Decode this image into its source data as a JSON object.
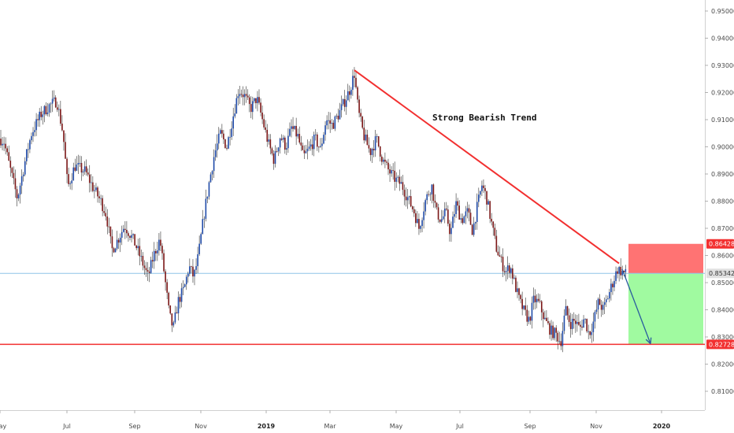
{
  "chart_data": {
    "type": "candlestick",
    "y_axis": {
      "range": [
        0.8,
        0.955
      ],
      "ticks": [
        "0.95000",
        "0.94000",
        "0.93000",
        "0.92000",
        "0.91000",
        "0.90000",
        "0.89000",
        "0.88000",
        "0.87000",
        "0.86000",
        "0.85000",
        "0.84000",
        "0.83000",
        "0.82000",
        "0.81000"
      ],
      "position": "right"
    },
    "x_axis": {
      "ticks": [
        {
          "label": "May",
          "bold": false
        },
        {
          "label": "Jul",
          "bold": false
        },
        {
          "label": "Sep",
          "bold": false
        },
        {
          "label": "Nov",
          "bold": false
        },
        {
          "label": "2019",
          "bold": true
        },
        {
          "label": "Mar",
          "bold": false
        },
        {
          "label": "May",
          "bold": false
        },
        {
          "label": "Jul",
          "bold": false
        },
        {
          "label": "Sep",
          "bold": false
        },
        {
          "label": "Nov",
          "bold": false
        },
        {
          "label": "2020",
          "bold": true
        }
      ]
    },
    "price_path": [
      [
        0,
        0.903
      ],
      [
        5,
        0.902
      ],
      [
        12,
        0.893
      ],
      [
        22,
        0.881
      ],
      [
        32,
        0.895
      ],
      [
        40,
        0.905
      ],
      [
        52,
        0.912
      ],
      [
        62,
        0.915
      ],
      [
        72,
        0.917
      ],
      [
        80,
        0.905
      ],
      [
        86,
        0.885
      ],
      [
        95,
        0.893
      ],
      [
        108,
        0.891
      ],
      [
        118,
        0.885
      ],
      [
        128,
        0.88
      ],
      [
        135,
        0.875
      ],
      [
        142,
        0.862
      ],
      [
        150,
        0.866
      ],
      [
        158,
        0.871
      ],
      [
        165,
        0.868
      ],
      [
        172,
        0.864
      ],
      [
        180,
        0.858
      ],
      [
        188,
        0.852
      ],
      [
        195,
        0.86
      ],
      [
        203,
        0.866
      ],
      [
        210,
        0.85
      ],
      [
        215,
        0.838
      ],
      [
        220,
        0.833
      ],
      [
        226,
        0.843
      ],
      [
        234,
        0.848
      ],
      [
        240,
        0.856
      ],
      [
        246,
        0.852
      ],
      [
        252,
        0.86
      ],
      [
        258,
        0.873
      ],
      [
        265,
        0.886
      ],
      [
        272,
        0.897
      ],
      [
        280,
        0.905
      ],
      [
        288,
        0.9
      ],
      [
        295,
        0.91
      ],
      [
        303,
        0.921
      ],
      [
        310,
        0.919
      ],
      [
        318,
        0.914
      ],
      [
        326,
        0.918
      ],
      [
        334,
        0.909
      ],
      [
        341,
        0.901
      ],
      [
        348,
        0.895
      ],
      [
        356,
        0.904
      ],
      [
        363,
        0.9
      ],
      [
        370,
        0.907
      ],
      [
        378,
        0.904
      ],
      [
        385,
        0.896
      ],
      [
        392,
        0.899
      ],
      [
        400,
        0.903
      ],
      [
        407,
        0.899
      ],
      [
        414,
        0.91
      ],
      [
        422,
        0.908
      ],
      [
        430,
        0.912
      ],
      [
        438,
        0.917
      ],
      [
        444,
        0.921
      ],
      [
        450,
        0.927
      ],
      [
        455,
        0.913
      ],
      [
        462,
        0.904
      ],
      [
        470,
        0.898
      ],
      [
        478,
        0.903
      ],
      [
        486,
        0.895
      ],
      [
        494,
        0.891
      ],
      [
        502,
        0.888
      ],
      [
        510,
        0.886
      ],
      [
        518,
        0.881
      ],
      [
        526,
        0.876
      ],
      [
        532,
        0.87
      ],
      [
        540,
        0.88
      ],
      [
        548,
        0.886
      ],
      [
        554,
        0.876
      ],
      [
        560,
        0.873
      ],
      [
        566,
        0.876
      ],
      [
        572,
        0.868
      ],
      [
        579,
        0.879
      ],
      [
        586,
        0.873
      ],
      [
        594,
        0.876
      ],
      [
        600,
        0.869
      ],
      [
        606,
        0.878
      ],
      [
        612,
        0.886
      ],
      [
        618,
        0.881
      ],
      [
        624,
        0.872
      ],
      [
        630,
        0.863
      ],
      [
        636,
        0.858
      ],
      [
        642,
        0.854
      ],
      [
        648,
        0.856
      ],
      [
        654,
        0.849
      ],
      [
        660,
        0.843
      ],
      [
        666,
        0.839
      ],
      [
        672,
        0.836
      ],
      [
        678,
        0.844
      ],
      [
        685,
        0.842
      ],
      [
        692,
        0.836
      ],
      [
        700,
        0.832
      ],
      [
        706,
        0.831
      ],
      [
        712,
        0.828
      ],
      [
        718,
        0.84
      ],
      [
        724,
        0.835
      ],
      [
        730,
        0.836
      ],
      [
        736,
        0.833
      ],
      [
        742,
        0.837
      ],
      [
        748,
        0.831
      ],
      [
        754,
        0.836
      ],
      [
        760,
        0.843
      ],
      [
        766,
        0.84
      ],
      [
        772,
        0.845
      ],
      [
        778,
        0.85
      ],
      [
        784,
        0.855
      ],
      [
        790,
        0.854
      ],
      [
        795,
        0.853
      ]
    ],
    "trendline": {
      "from_x": 450,
      "from_y": 0.9282,
      "to_x": 786,
      "to_y": 0.8571,
      "color": "#f23030",
      "label": "Strong Bearish Trend"
    },
    "projection_arrow": {
      "from_x": 790,
      "from_y": 0.855,
      "to_x": 826,
      "to_y": 0.8275,
      "color": "#2a5c9e"
    },
    "levels": {
      "entry": {
        "value": 0.85342,
        "label": "0.85342",
        "color": "#8fc4e8",
        "badge_color": "#e0e0e0"
      },
      "stop": {
        "value": 0.86428,
        "label": "0.86428",
        "color": "#f23030",
        "badge_color": "#f23030"
      },
      "target": {
        "value": 0.82728,
        "label": "0.82728",
        "color": "#f23030",
        "badge_color": "#f23030"
      }
    },
    "risk_box": {
      "x_start": 798,
      "x_end": 893,
      "color": "#ff6b6b"
    },
    "reward_box": {
      "x_start": 798,
      "x_end": 893,
      "color": "#9bfa9b"
    },
    "colors": {
      "candle_up": "#1f4aa8",
      "candle_down": "#7a1616",
      "wick": "#333333",
      "axis_bg": "#ffffff",
      "axis_border": "#dadada"
    },
    "grid": false,
    "legend": "none"
  }
}
